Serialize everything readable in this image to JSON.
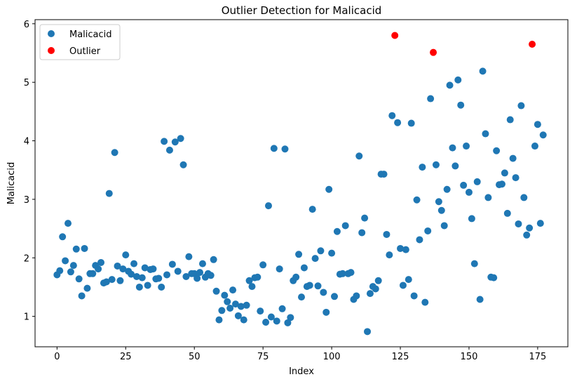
{
  "chart_data": {
    "type": "scatter",
    "title": "Outlier Detection for Malicacid",
    "xlabel": "Index",
    "ylabel": "Malicacid",
    "xlim": [
      -8,
      186
    ],
    "ylim": [
      0.48,
      6.07
    ],
    "xticks": [
      0,
      25,
      50,
      75,
      100,
      125,
      150,
      175
    ],
    "yticks": [
      1,
      2,
      3,
      4,
      5,
      6
    ],
    "grid": false,
    "legend_position": "top-left",
    "series": [
      {
        "name": "Malicacid",
        "color": "#1f77b4",
        "x": [
          0,
          1,
          2,
          3,
          4,
          5,
          6,
          7,
          8,
          9,
          10,
          11,
          12,
          13,
          14,
          15,
          16,
          17,
          18,
          19,
          20,
          21,
          22,
          23,
          24,
          25,
          26,
          27,
          28,
          29,
          30,
          31,
          32,
          33,
          34,
          35,
          36,
          37,
          38,
          39,
          40,
          41,
          42,
          43,
          44,
          45,
          46,
          47,
          48,
          49,
          50,
          51,
          52,
          53,
          54,
          55,
          56,
          57,
          58,
          59,
          60,
          61,
          62,
          63,
          64,
          65,
          66,
          67,
          68,
          69,
          70,
          71,
          72,
          73,
          74,
          75,
          76,
          77,
          78,
          79,
          80,
          81,
          82,
          83,
          84,
          85,
          86,
          87,
          88,
          89,
          90,
          91,
          92,
          93,
          94,
          95,
          96,
          97,
          98,
          99,
          100,
          101,
          102,
          103,
          104,
          105,
          106,
          107,
          108,
          109,
          110,
          111,
          112,
          113,
          114,
          115,
          116,
          117,
          118,
          119,
          120,
          121,
          122,
          124,
          125,
          126,
          127,
          128,
          129,
          130,
          131,
          132,
          133,
          134,
          135,
          136,
          138,
          139,
          140,
          141,
          142,
          143,
          144,
          145,
          146,
          147,
          148,
          149,
          150,
          151,
          152,
          153,
          154,
          155,
          156,
          157,
          158,
          159,
          160,
          161,
          162,
          163,
          164,
          165,
          166,
          167,
          168,
          169,
          170,
          171,
          172,
          174,
          175,
          176,
          177
        ],
        "y": [
          1.71,
          1.78,
          2.36,
          1.95,
          2.59,
          1.76,
          1.87,
          2.15,
          1.64,
          1.35,
          2.16,
          1.48,
          1.73,
          1.73,
          1.87,
          1.81,
          1.92,
          1.57,
          1.59,
          3.1,
          1.63,
          3.8,
          1.86,
          1.61,
          1.81,
          2.05,
          1.77,
          1.72,
          1.9,
          1.68,
          1.5,
          1.66,
          1.83,
          1.53,
          1.8,
          1.81,
          1.64,
          1.65,
          1.5,
          3.99,
          1.71,
          3.84,
          1.89,
          3.98,
          1.77,
          4.04,
          3.59,
          1.68,
          2.02,
          1.73,
          1.73,
          1.65,
          1.75,
          1.9,
          1.67,
          1.73,
          1.7,
          1.97,
          1.43,
          0.94,
          1.1,
          1.36,
          1.25,
          1.14,
          1.45,
          1.21,
          1.01,
          1.17,
          0.94,
          1.19,
          1.61,
          1.51,
          1.66,
          1.67,
          1.09,
          1.88,
          0.9,
          2.89,
          0.99,
          3.87,
          0.92,
          1.81,
          1.13,
          3.86,
          0.89,
          0.98,
          1.61,
          1.67,
          2.06,
          1.33,
          1.83,
          1.51,
          1.53,
          2.83,
          1.99,
          1.52,
          2.12,
          1.41,
          1.07,
          3.17,
          2.08,
          1.34,
          2.45,
          1.72,
          1.73,
          2.55,
          1.73,
          1.75,
          1.29,
          1.35,
          3.74,
          2.43,
          2.68,
          0.74,
          1.39,
          1.51,
          1.47,
          1.61,
          3.43,
          3.43,
          2.4,
          2.05,
          4.43,
          4.31,
          2.16,
          1.53,
          2.14,
          1.63,
          4.3,
          1.35,
          2.99,
          2.31,
          3.55,
          1.24,
          2.46,
          4.72,
          3.59,
          2.96,
          2.81,
          2.55,
          3.17,
          4.95,
          3.88,
          3.57,
          5.04,
          4.61,
          3.24,
          3.91,
          3.12,
          2.67,
          1.9,
          3.3,
          1.29,
          5.19,
          4.12,
          3.03,
          1.67,
          1.66,
          3.83,
          3.25,
          3.26,
          3.45,
          2.76,
          4.36,
          3.7,
          3.37,
          2.58,
          4.6,
          3.03,
          2.39,
          2.51,
          3.91,
          4.28,
          2.59,
          4.1
        ]
      },
      {
        "name": "Outlier",
        "color": "#ff0000",
        "x": [
          123,
          137,
          173
        ],
        "y": [
          5.8,
          5.51,
          5.65
        ]
      }
    ]
  }
}
